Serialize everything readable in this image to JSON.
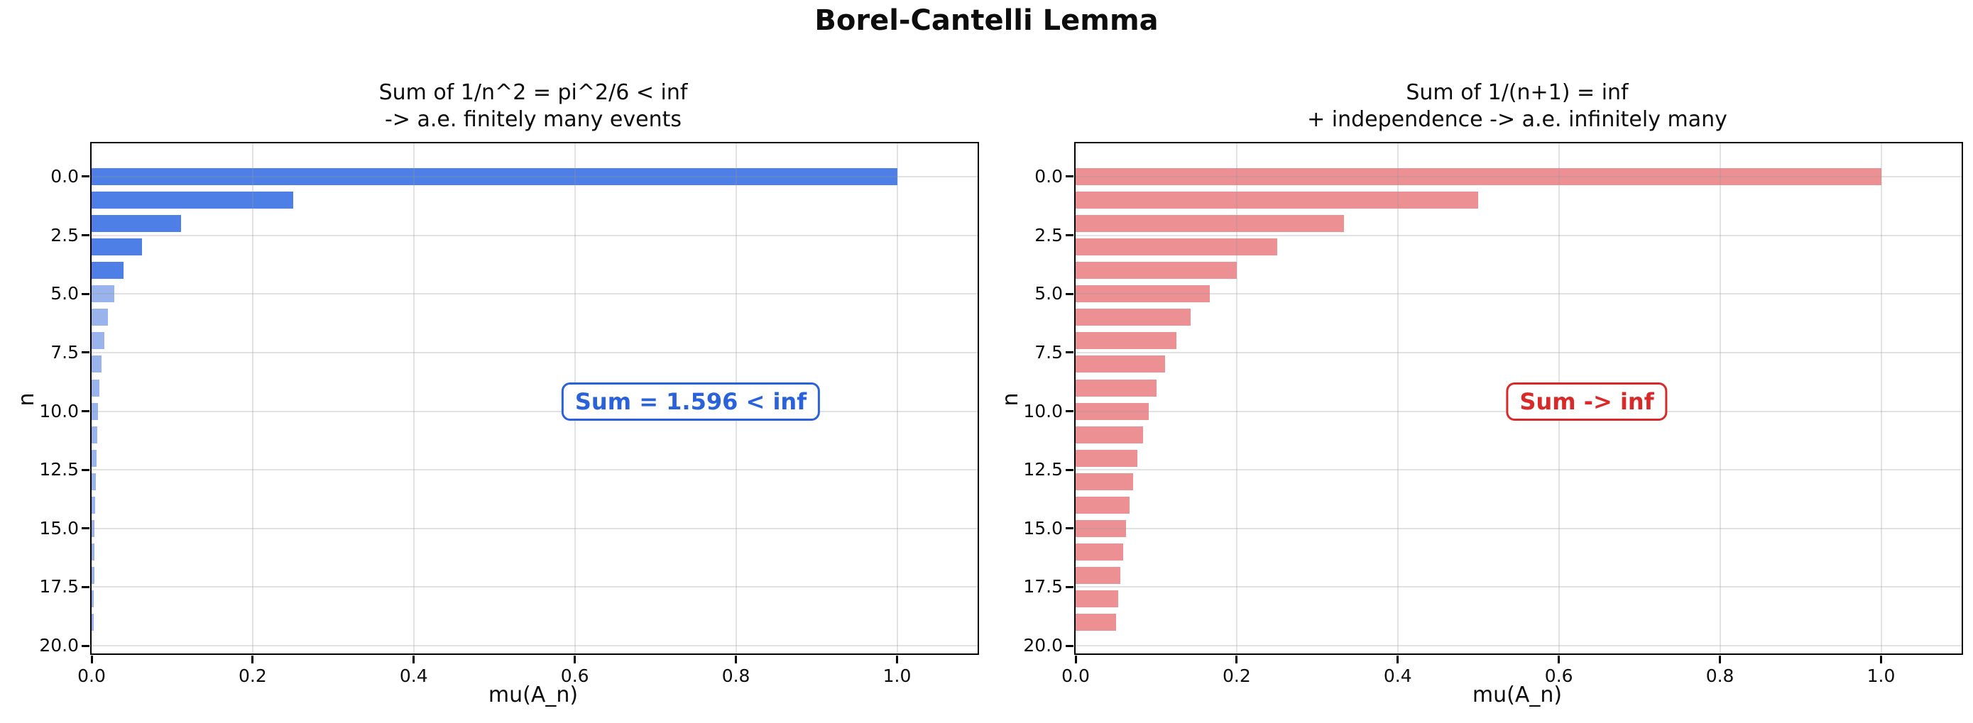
{
  "figure": {
    "title": "Borel-Cantelli Lemma",
    "background": "#ffffff",
    "text_color": "#0d0d0d"
  },
  "chart_data": [
    {
      "type": "bar",
      "orientation": "horizontal",
      "y_axis_inverted": true,
      "title_lines": [
        "Sum of 1/n^2 = pi^2/6 < inf",
        "-> a.e. finitely many events"
      ],
      "xlabel": "mu(A_n)",
      "ylabel": "n",
      "categories": [
        0,
        1,
        2,
        3,
        4,
        5,
        6,
        7,
        8,
        9,
        10,
        11,
        12,
        13,
        14,
        15,
        16,
        17,
        18,
        19
      ],
      "values": [
        1.0,
        0.25,
        0.1111,
        0.0625,
        0.04,
        0.0278,
        0.0204,
        0.0156,
        0.0123,
        0.01,
        0.0083,
        0.0069,
        0.0059,
        0.0051,
        0.0044,
        0.0039,
        0.0035,
        0.0031,
        0.0028,
        0.0025
      ],
      "xlim": [
        0,
        1.1
      ],
      "ylim_top": -1.42,
      "ylim_bottom": 20.33,
      "xticks": [
        0.0,
        0.2,
        0.4,
        0.6,
        0.8,
        1.0
      ],
      "yticks": [
        0.0,
        2.5,
        5.0,
        7.5,
        10.0,
        12.5,
        15.0,
        17.5,
        20.0
      ],
      "grid": true,
      "bar_colors": {
        "strong": "#4d7fe7",
        "light": "#99b3ed",
        "strong_max_n": 4
      },
      "annotation": {
        "text": "Sum = 1.596 < inf",
        "color": "#2a62dc",
        "x": 0.746,
        "y": 9.65
      }
    },
    {
      "type": "bar",
      "orientation": "horizontal",
      "y_axis_inverted": true,
      "title_lines": [
        "Sum of 1/(n+1) = inf",
        "+ independence -> a.e. infinitely many"
      ],
      "xlabel": "mu(A_n)",
      "ylabel": "n",
      "categories": [
        0,
        1,
        2,
        3,
        4,
        5,
        6,
        7,
        8,
        9,
        10,
        11,
        12,
        13,
        14,
        15,
        16,
        17,
        18,
        19
      ],
      "values": [
        1.0,
        0.5,
        0.3333,
        0.25,
        0.2,
        0.1667,
        0.1429,
        0.125,
        0.1111,
        0.1,
        0.0909,
        0.0833,
        0.0769,
        0.0714,
        0.0667,
        0.0625,
        0.0588,
        0.0556,
        0.0526,
        0.05
      ],
      "xlim": [
        0,
        1.1
      ],
      "ylim_top": -1.42,
      "ylim_bottom": 20.33,
      "xticks": [
        0.0,
        0.2,
        0.4,
        0.6,
        0.8,
        1.0
      ],
      "yticks": [
        0.0,
        2.5,
        5.0,
        7.5,
        10.0,
        12.5,
        15.0,
        17.5,
        20.0
      ],
      "grid": true,
      "bar_colors": {
        "strong": "#ec9094",
        "light": "#ec9094",
        "strong_max_n": 19
      },
      "annotation": {
        "text": "Sum -> inf",
        "color": "#d92a2a",
        "x": 0.636,
        "y": 9.65
      }
    }
  ]
}
